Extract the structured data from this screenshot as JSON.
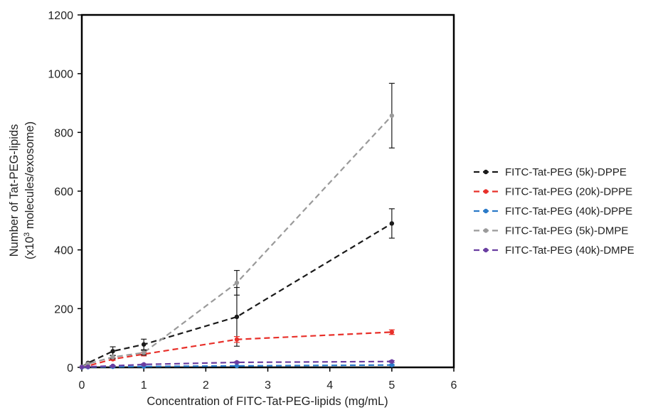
{
  "chart_data": {
    "type": "line",
    "title": "",
    "xlabel": "Concentration of FITC-Tat-PEG-lipids (mg/mL)",
    "ylabel_line1": "Number of Tat-PEG-lipids",
    "ylabel_line2_pre": "(x10",
    "ylabel_line2_sup": "3",
    "ylabel_line2_post": " molecules/exosome)",
    "xlim": [
      0,
      6
    ],
    "ylim": [
      0,
      1200
    ],
    "xticks": [
      0,
      1,
      2,
      3,
      4,
      5,
      6
    ],
    "yticks": [
      0,
      200,
      400,
      600,
      800,
      1000,
      1200
    ],
    "grid": false,
    "legend_position": "right",
    "series": [
      {
        "name": "FITC-Tat-PEG (5k)-DPPE",
        "color": "#1a1a1a",
        "x": [
          0,
          0.1,
          0.5,
          1,
          2.5,
          5
        ],
        "y": [
          2,
          15,
          55,
          78,
          172,
          490
        ],
        "err": [
          0,
          0,
          15,
          18,
          100,
          50
        ]
      },
      {
        "name": "FITC-Tat-PEG (20k)-DPPE",
        "color": "#e8302a",
        "x": [
          0,
          0.1,
          0.5,
          1,
          2.5,
          5
        ],
        "y": [
          1,
          5,
          28,
          45,
          95,
          120
        ],
        "err": [
          0,
          0,
          4,
          6,
          10,
          8
        ]
      },
      {
        "name": "FITC-Tat-PEG (40k)-DPPE",
        "color": "#2a7ac8",
        "x": [
          0,
          0.1,
          0.5,
          1,
          2.5,
          5
        ],
        "y": [
          0,
          1,
          2,
          3,
          5,
          8
        ],
        "err": [
          0,
          0,
          1,
          1,
          1,
          2
        ]
      },
      {
        "name": "FITC-Tat-PEG (5k)-DMPE",
        "color": "#9a9a9a",
        "x": [
          0,
          0.1,
          0.5,
          1,
          2.5,
          5
        ],
        "y": [
          2,
          12,
          35,
          50,
          288,
          857
        ],
        "err": [
          0,
          0,
          6,
          8,
          42,
          110
        ]
      },
      {
        "name": "FITC-Tat-PEG (40k)-DMPE",
        "color": "#6a3ea1",
        "x": [
          0,
          0.1,
          0.5,
          1,
          2.5,
          5
        ],
        "y": [
          1,
          2,
          5,
          10,
          17,
          20
        ],
        "err": [
          0,
          0,
          1,
          2,
          2,
          3
        ]
      }
    ]
  }
}
